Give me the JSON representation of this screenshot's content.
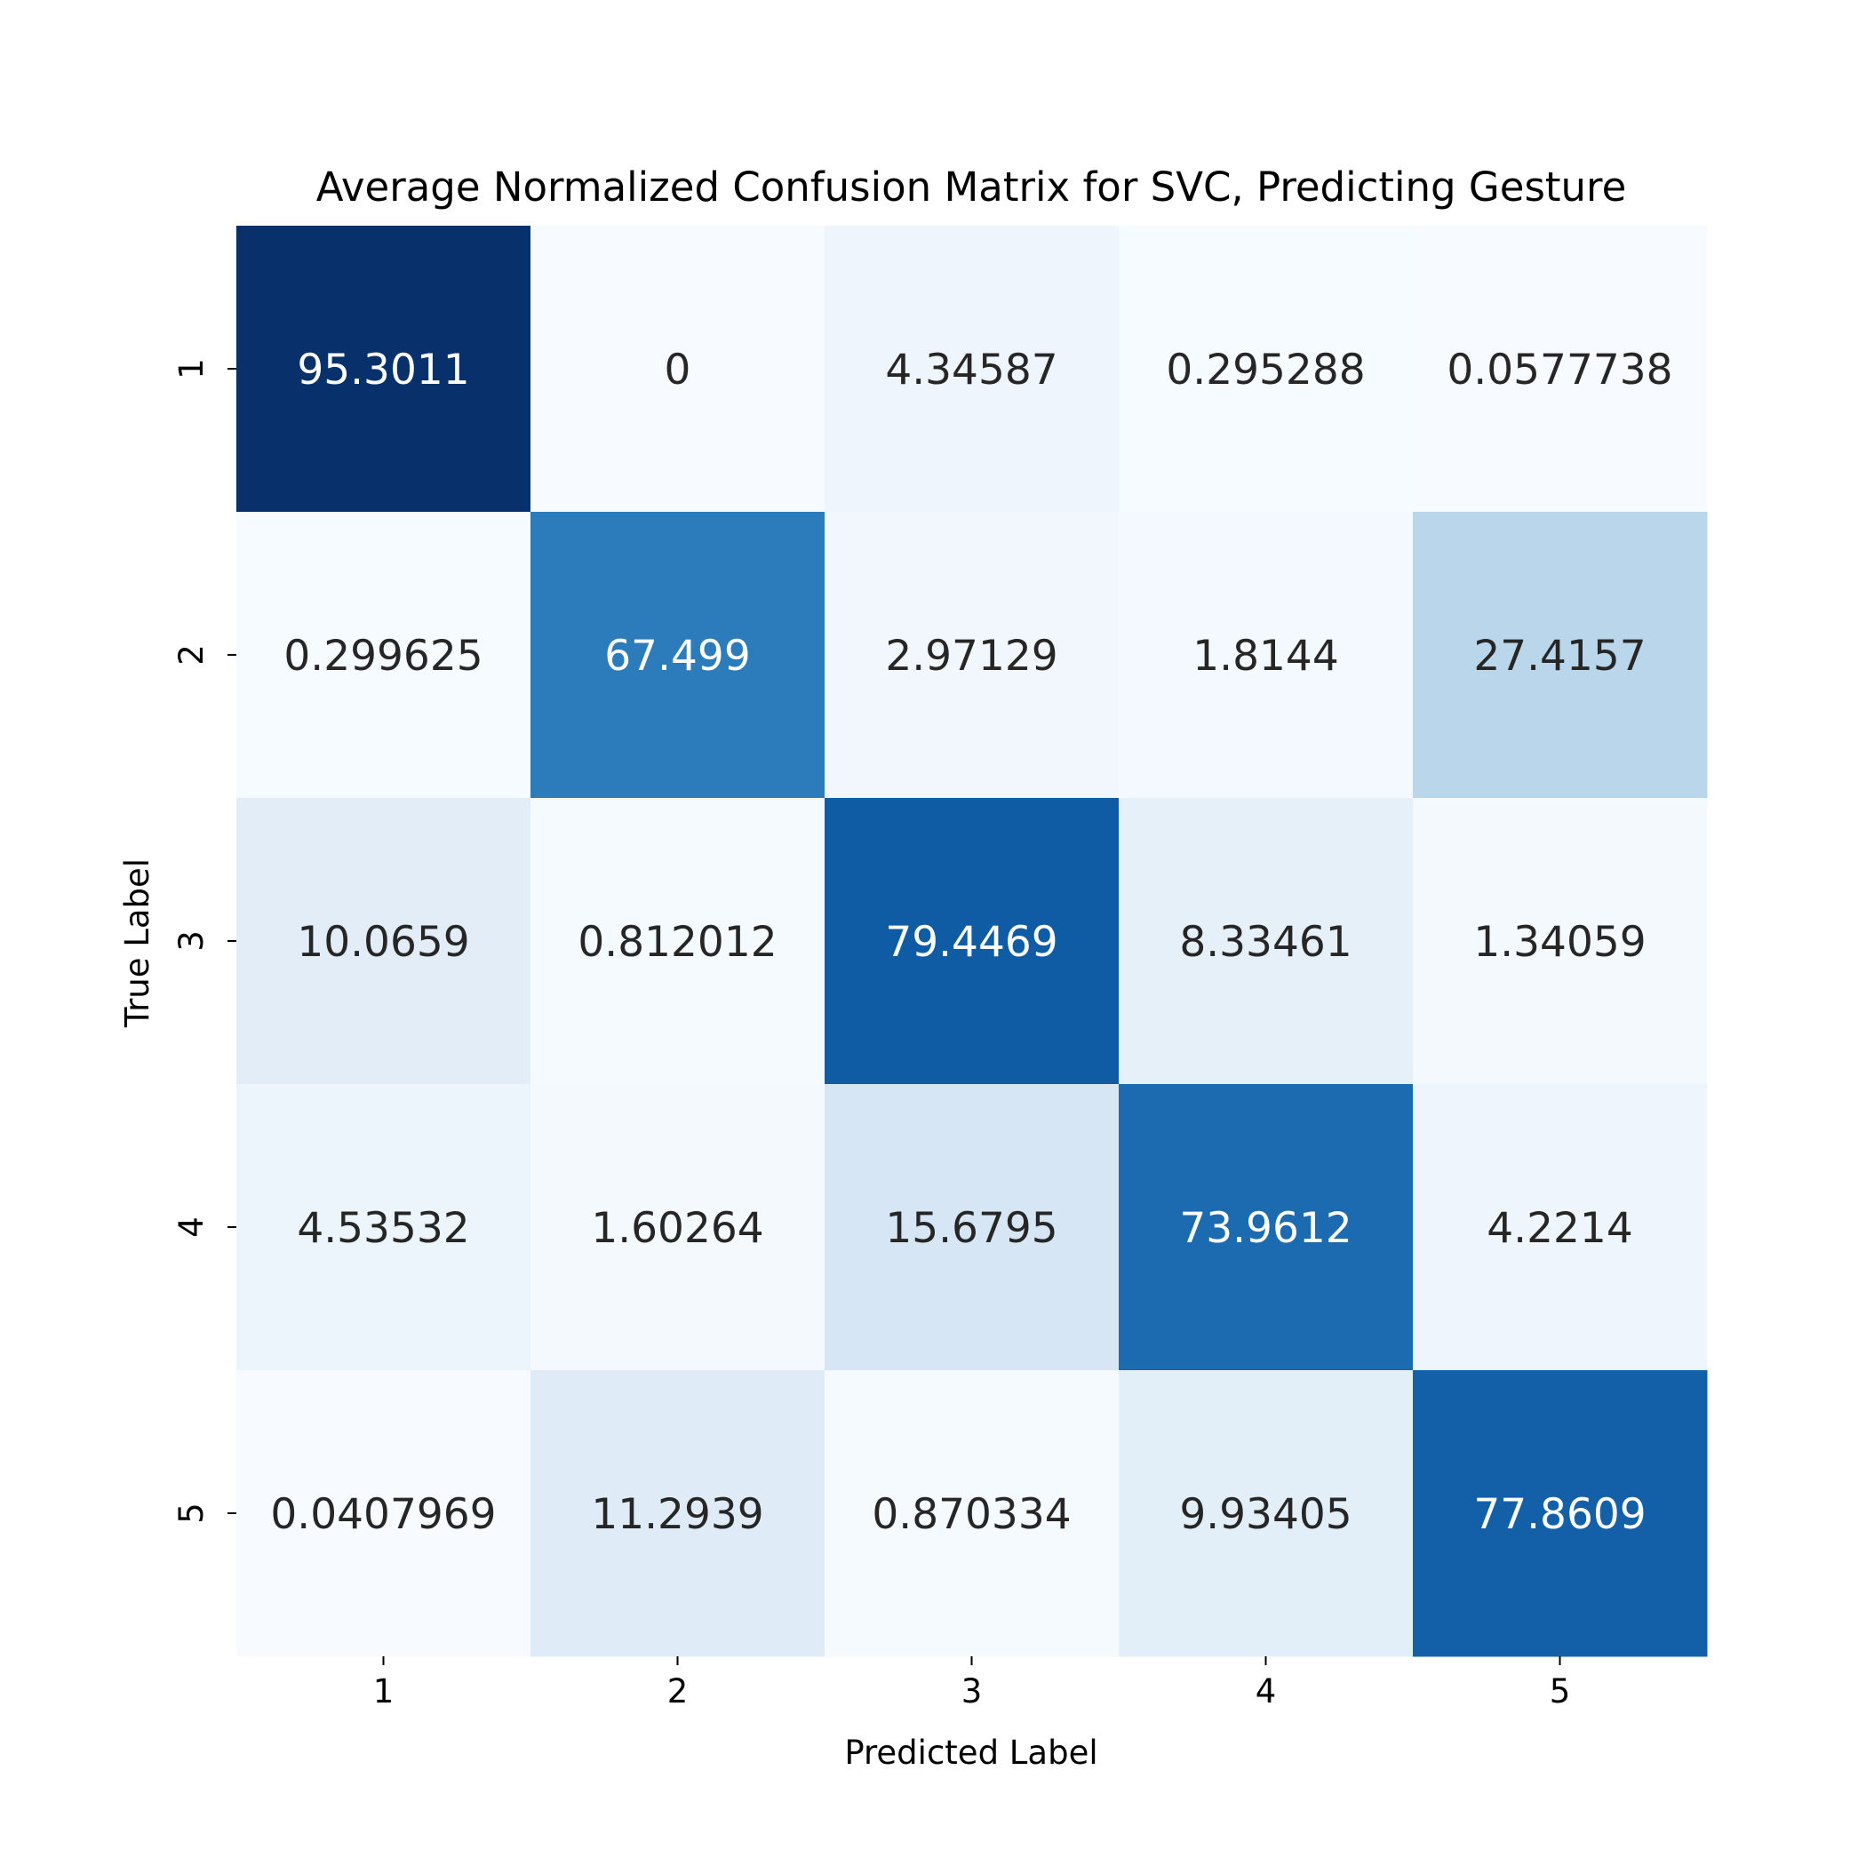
{
  "chart_data": {
    "type": "heatmap",
    "title": "Average Normalized Confusion Matrix for SVC, Predicting Gesture",
    "xlabel": "Predicted Label",
    "ylabel": "True Label",
    "x_categories": [
      "1",
      "2",
      "3",
      "4",
      "5"
    ],
    "y_categories": [
      "1",
      "2",
      "3",
      "4",
      "5"
    ],
    "values": [
      [
        95.3011,
        0,
        4.34587,
        0.295288,
        0.0577738
      ],
      [
        0.299625,
        67.499,
        2.97129,
        1.8144,
        27.4157
      ],
      [
        10.0659,
        0.812012,
        79.4469,
        8.33461,
        1.34059
      ],
      [
        4.53532,
        1.60264,
        15.6795,
        73.9612,
        4.2214
      ],
      [
        0.0407969,
        11.2939,
        0.870334,
        9.93405,
        77.8609
      ]
    ],
    "value_labels": [
      [
        "95.3011",
        "0",
        "4.34587",
        "0.295288",
        "0.0577738"
      ],
      [
        "0.299625",
        "67.499",
        "2.97129",
        "1.8144",
        "27.4157"
      ],
      [
        "10.0659",
        "0.812012",
        "79.4469",
        "8.33461",
        "1.34059"
      ],
      [
        "4.53532",
        "1.60264",
        "15.6795",
        "73.9612",
        "4.2214"
      ],
      [
        "0.0407969",
        "11.2939",
        "0.870334",
        "9.93405",
        "77.8609"
      ]
    ],
    "colormap": "Blues",
    "colorbar": false,
    "grid": false
  }
}
